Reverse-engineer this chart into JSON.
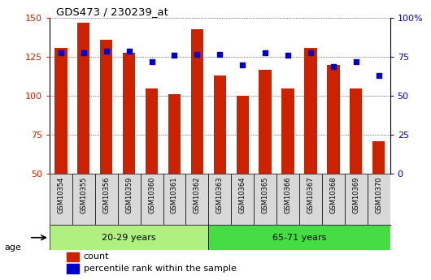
{
  "title": "GDS473 / 230239_at",
  "samples": [
    "GSM10354",
    "GSM10355",
    "GSM10356",
    "GSM10359",
    "GSM10360",
    "GSM10361",
    "GSM10362",
    "GSM10363",
    "GSM10364",
    "GSM10365",
    "GSM10366",
    "GSM10367",
    "GSM10368",
    "GSM10369",
    "GSM10370"
  ],
  "counts": [
    131,
    147,
    136,
    128,
    105,
    101,
    143,
    113,
    100,
    117,
    105,
    131,
    120,
    105,
    71
  ],
  "percentile_ranks": [
    78,
    78,
    79,
    79,
    72,
    76,
    77,
    77,
    70,
    78,
    76,
    78,
    69,
    72,
    63
  ],
  "group1_label": "20-29 years",
  "group2_label": "65-71 years",
  "group1_count": 7,
  "group2_count": 8,
  "bar_bottom": 50,
  "ylim_left": [
    50,
    150
  ],
  "ylim_right": [
    0,
    100
  ],
  "yticks_left": [
    50,
    75,
    100,
    125,
    150
  ],
  "yticks_right": [
    0,
    25,
    50,
    75,
    100
  ],
  "bar_color": "#cc2200",
  "percentile_color": "#0000cc",
  "group1_bg": "#b0f080",
  "group2_bg": "#44dd44",
  "sample_bg": "#d8d8d8",
  "legend_count_label": "count",
  "legend_pct_label": "percentile rank within the sample",
  "age_label": "age",
  "bar_width": 0.55,
  "grid_color": "#333333",
  "left_tick_color": "#cc2200",
  "right_tick_color": "#0000cc",
  "bg_color": "#ffffff"
}
